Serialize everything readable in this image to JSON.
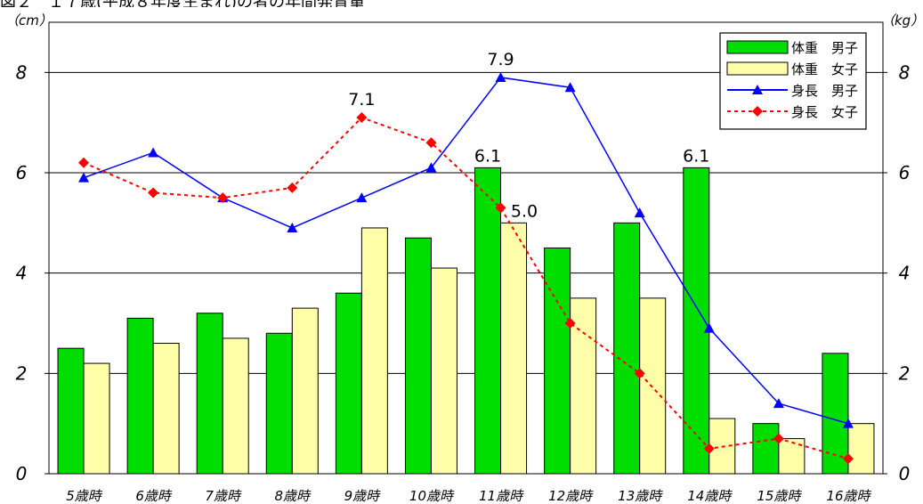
{
  "chart_data": {
    "type": "bar",
    "title": "図２　１７歳(平成８年度生まれ)の者の年間発育量",
    "categories": [
      "5歳時",
      "6歳時",
      "7歳時",
      "8歳時",
      "9歳時",
      "10歳時",
      "11歳時",
      "12歳時",
      "13歳時",
      "14歳時",
      "15歳時",
      "16歳時"
    ],
    "ylim": [
      0,
      9
    ],
    "yticks": [
      0,
      2,
      4,
      6,
      8
    ],
    "left_unit": "（cm）",
    "right_unit": "（kg）",
    "grid": true,
    "legend_position": "top-right",
    "series": [
      {
        "name": "体重　男子",
        "type": "bar",
        "color": "#00dd00",
        "values": [
          2.5,
          3.1,
          3.2,
          2.8,
          3.6,
          4.7,
          6.1,
          4.5,
          5.0,
          6.1,
          1.0,
          2.4
        ]
      },
      {
        "name": "体重　女子",
        "type": "bar",
        "color": "#ffffaa",
        "values": [
          2.2,
          2.6,
          2.7,
          3.3,
          4.9,
          4.1,
          5.0,
          3.5,
          3.5,
          1.1,
          0.7,
          1.0
        ]
      },
      {
        "name": "身長　男子",
        "type": "line",
        "color": "#0000ff",
        "marker": "triangle",
        "values": [
          5.9,
          6.4,
          5.5,
          4.9,
          5.5,
          6.1,
          7.9,
          7.7,
          5.2,
          2.9,
          1.4,
          1.0
        ]
      },
      {
        "name": "身長　女子",
        "type": "line",
        "color": "#ff0000",
        "marker": "diamond",
        "dashed": true,
        "values": [
          6.2,
          5.6,
          5.5,
          5.7,
          7.1,
          6.6,
          5.3,
          3.0,
          2.0,
          0.5,
          0.7,
          0.3
        ]
      }
    ],
    "annotations": [
      {
        "text": "7.1",
        "series": 3,
        "index": 4
      },
      {
        "text": "7.9",
        "series": 2,
        "index": 6
      },
      {
        "text": "6.1",
        "series": 0,
        "index": 6
      },
      {
        "text": "5.0",
        "series": 1,
        "index": 6
      },
      {
        "text": "6.1",
        "series": 0,
        "index": 9
      }
    ]
  }
}
